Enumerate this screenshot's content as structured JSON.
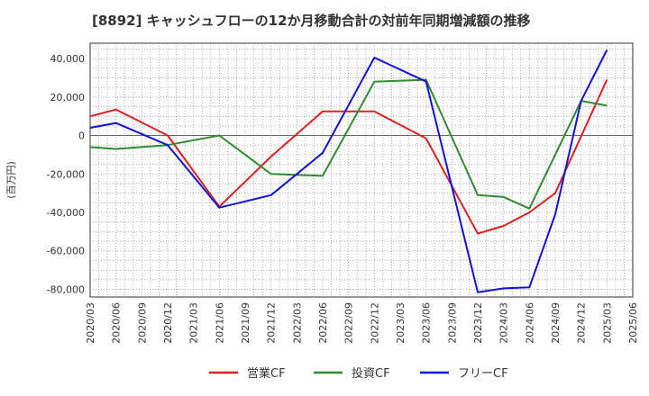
{
  "chart_data": {
    "type": "line",
    "title": "[8892]  キャッシュフローの12か月移動合計の対前年同期増減額の推移",
    "ylabel": "(百万円)",
    "xlabel": "",
    "ylim": [
      -84000,
      48000
    ],
    "yticks": [
      40000,
      20000,
      0,
      -20000,
      -40000,
      -60000,
      -80000
    ],
    "ytick_labels": [
      "40,000",
      "20,000",
      "0",
      "-20,000",
      "-40,000",
      "-60,000",
      "-80,000"
    ],
    "categories": [
      "2020/03",
      "2020/06",
      "2020/09",
      "2020/12",
      "2021/03",
      "2021/06",
      "2021/09",
      "2021/12",
      "2022/03",
      "2022/06",
      "2022/09",
      "2022/12",
      "2023/03",
      "2023/06",
      "2023/09",
      "2023/12",
      "2024/03",
      "2024/06",
      "2024/09",
      "2024/12",
      "2025/03",
      "2025/06"
    ],
    "grid": true,
    "legend_position": "bottom",
    "series": [
      {
        "name": "営業CF",
        "color": "#e02020",
        "values": [
          10000,
          13500,
          null,
          0,
          null,
          -37000,
          null,
          -11000,
          null,
          12500,
          null,
          12500,
          null,
          -1500,
          null,
          -51000,
          -47000,
          -40000,
          -30000,
          null,
          29000,
          null
        ]
      },
      {
        "name": "投資CF",
        "color": "#2e8b2e",
        "values": [
          -6000,
          -7000,
          null,
          -5000,
          null,
          0,
          null,
          -20000,
          null,
          -21000,
          null,
          28000,
          null,
          29000,
          null,
          -31000,
          -32000,
          -38000,
          null,
          18000,
          15500,
          null
        ]
      },
      {
        "name": "フリーCF",
        "color": "#1010e0",
        "values": [
          4000,
          6500,
          null,
          -5000,
          null,
          -37500,
          null,
          -31000,
          null,
          -9000,
          null,
          40500,
          null,
          28000,
          null,
          -81500,
          -79500,
          -79000,
          -41000,
          18000,
          44500,
          null
        ]
      }
    ]
  }
}
